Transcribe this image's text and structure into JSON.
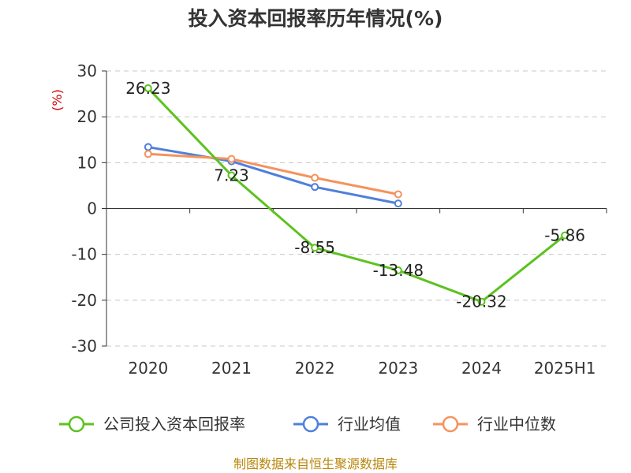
{
  "source_note": "制图数据来自恒生聚源数据库",
  "chart_data": {
    "type": "line",
    "title": "投入资本回报率历年情况(%)",
    "unit_label": "(%)",
    "categories": [
      "2020",
      "2021",
      "2022",
      "2023",
      "2024",
      "2025H1"
    ],
    "yticks": [
      "30",
      "20",
      "10",
      "0",
      "-10",
      "-20",
      "-30"
    ],
    "ylim": [
      -30,
      30
    ],
    "grid": true,
    "legend_position": "bottom",
    "series": [
      {
        "name": "公司投入资本回报率",
        "color": "#5cc21f",
        "values": [
          26.23,
          7.23,
          -8.55,
          -13.48,
          -20.32,
          -5.86
        ],
        "labels": [
          "26.23",
          "7.23",
          "-8.55",
          "-13.48",
          "-20.32",
          "-5.86"
        ]
      },
      {
        "name": "行业均值",
        "color": "#4f7fdb",
        "values": [
          13.4,
          10.3,
          4.7,
          1.1,
          null,
          null
        ]
      },
      {
        "name": "行业中位数",
        "color": "#f4935d",
        "values": [
          11.9,
          10.8,
          6.7,
          3.1,
          null,
          null
        ]
      }
    ]
  }
}
